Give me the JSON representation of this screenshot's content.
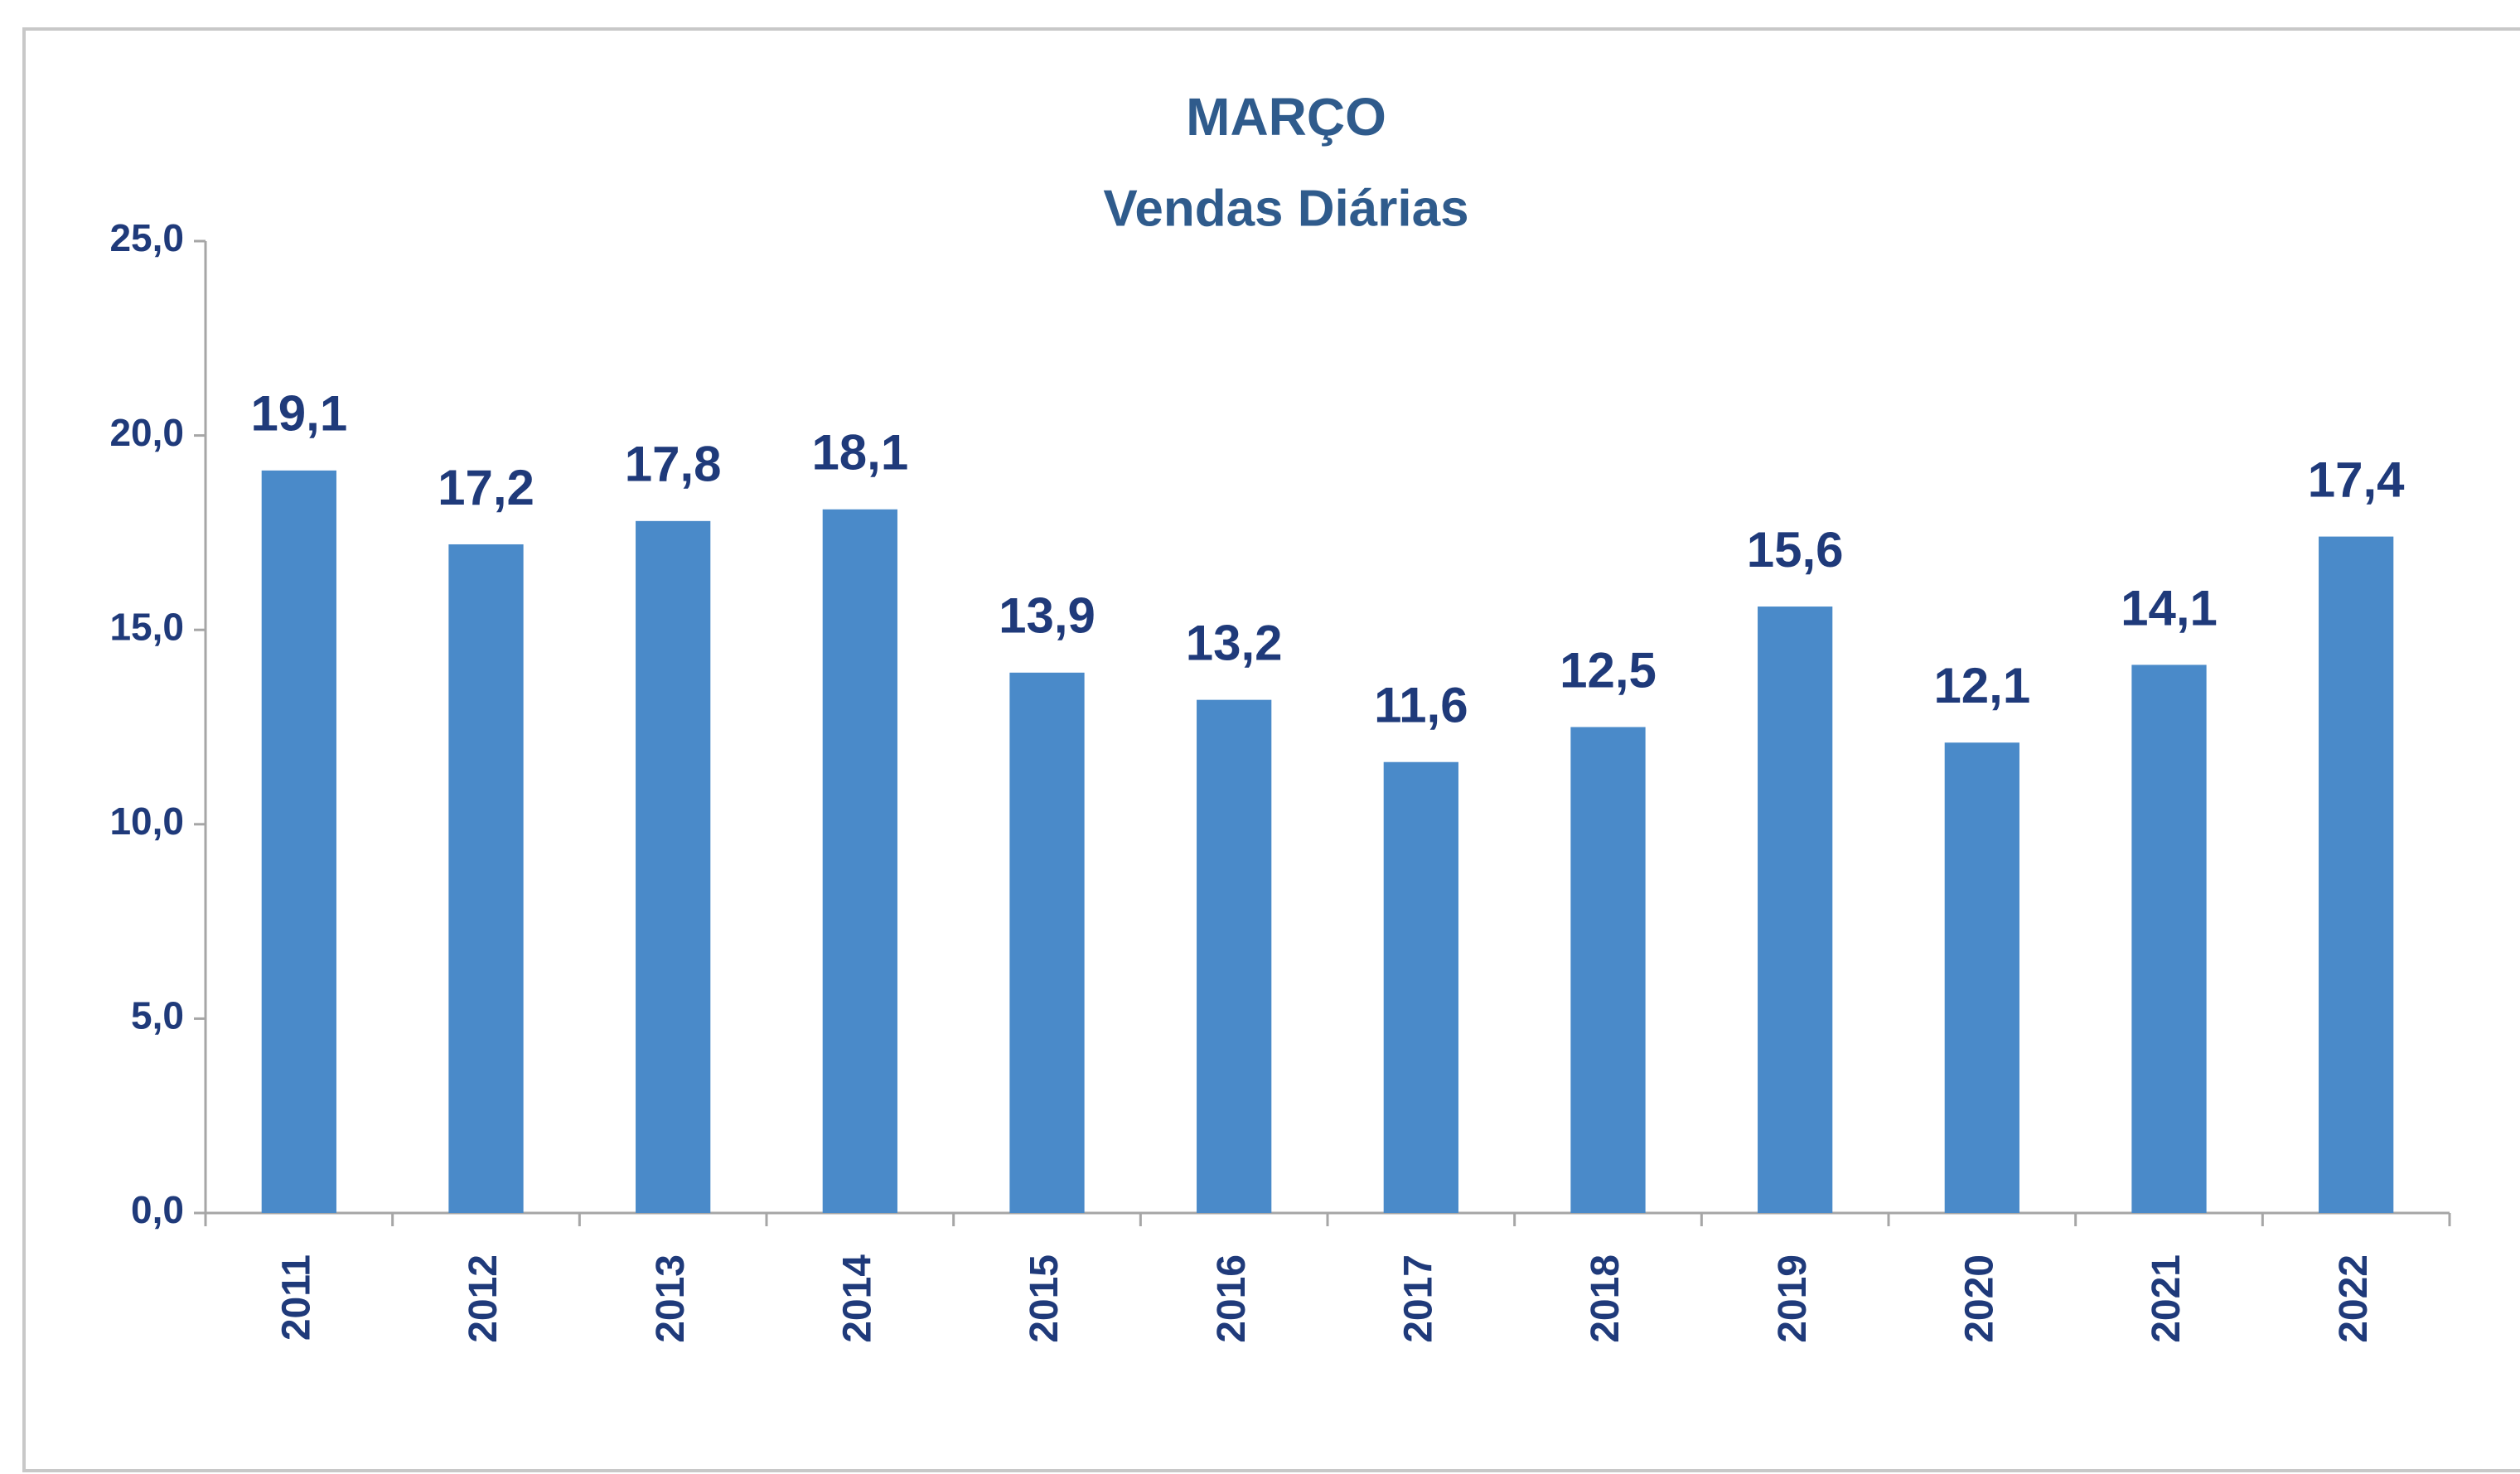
{
  "chart_data": {
    "type": "bar",
    "title": "MARÇO",
    "subtitle": "Vendas Diárias",
    "categories": [
      "2011",
      "2012",
      "2013",
      "2014",
      "2015",
      "2016",
      "2017",
      "2018",
      "2019",
      "2020",
      "2021",
      "2022"
    ],
    "values": [
      19.1,
      17.2,
      17.8,
      18.1,
      13.9,
      13.2,
      11.6,
      12.5,
      15.6,
      12.1,
      14.1,
      17.4
    ],
    "value_labels": [
      "19,1",
      "17,2",
      "17,8",
      "18,1",
      "13,9",
      "13,2",
      "11,6",
      "12,5",
      "15,6",
      "12,1",
      "14,1",
      "17,4"
    ],
    "color": "#4a8ac9",
    "ylim": [
      0,
      25
    ],
    "yticks": [
      {
        "value": 0,
        "label": "0,0"
      },
      {
        "value": 5,
        "label": "5,0"
      },
      {
        "value": 10,
        "label": "10,0"
      },
      {
        "value": 15,
        "label": "15,0"
      },
      {
        "value": 20,
        "label": "20,0"
      },
      {
        "value": 25,
        "label": "25,0"
      }
    ],
    "grid": false
  }
}
